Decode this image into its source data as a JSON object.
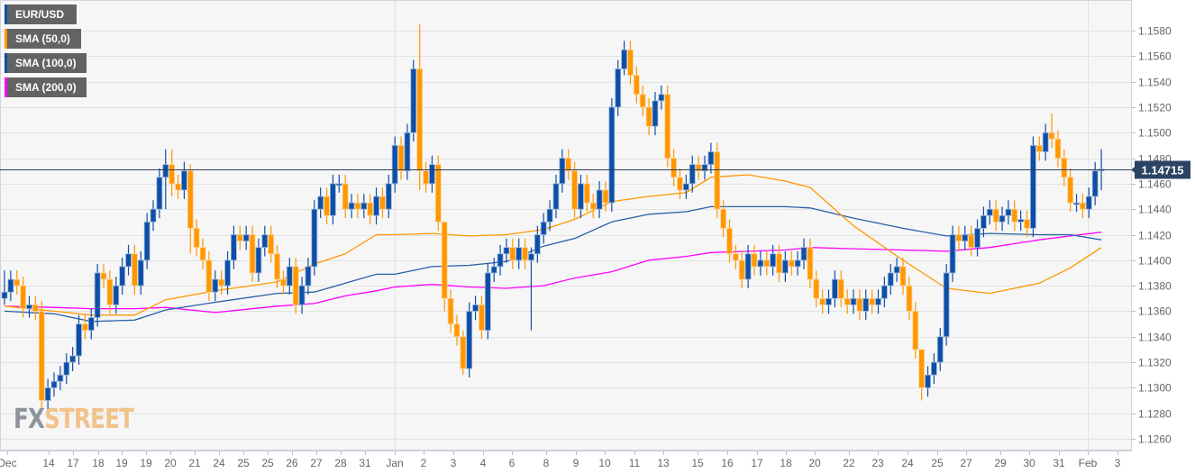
{
  "legend": [
    {
      "label": "EUR/USD",
      "color": "#0d4fa8"
    },
    {
      "label": "SMA (50,0)",
      "color": "#ff9800"
    },
    {
      "label": "SMA (100,0)",
      "color": "#0d4fa8"
    },
    {
      "label": "SMA (200,0)",
      "color": "#ff00ff"
    }
  ],
  "logo": {
    "part1": "FX",
    "part2": "STREET"
  },
  "chart_data": {
    "type": "candlestick",
    "symbol": "EUR/USD",
    "ylim": [
      1.125,
      1.159
    ],
    "y_ticks": [
      "1.1580",
      "1.1560",
      "1.1540",
      "1.1520",
      "1.1500",
      "1.1480",
      "1.1460",
      "1.1440",
      "1.1420",
      "1.1400",
      "1.1380",
      "1.1360",
      "1.1340",
      "1.1320",
      "1.1300",
      "1.1280",
      "1.1260"
    ],
    "x_tick_labels": [
      "Dec",
      "14",
      "17",
      "18",
      "19",
      "19",
      "20",
      "21",
      "24",
      "25",
      "25",
      "26",
      "27",
      "28",
      "31",
      "Jan",
      "2",
      "3",
      "4",
      "6",
      "8",
      "9",
      "10",
      "11",
      "13",
      "15",
      "16",
      "17",
      "18",
      "20",
      "22",
      "23",
      "24",
      "25",
      "27",
      "29",
      "30",
      "31",
      "Feb",
      "3"
    ],
    "current_price": {
      "value": 1.14715,
      "label": "1.14715"
    },
    "colors": {
      "bull": "#0d4fa8",
      "bear": "#ff9800",
      "sma50": "#ff9800",
      "sma100": "#2a5fa8",
      "sma200": "#ff00ff",
      "price_line": "#2c3e5a",
      "price_tag": "#2c4463"
    },
    "first_open": 1.137,
    "default_wick": 0.0007,
    "close": [
      1.1375,
      1.1385,
      1.138,
      1.1362,
      1.1365,
      1.136,
      1.129,
      1.13,
      1.1305,
      1.131,
      1.132,
      1.1325,
      1.135,
      1.1345,
      1.1355,
      1.139,
      1.1385,
      1.1365,
      1.138,
      1.1395,
      1.1405,
      1.138,
      1.14,
      1.143,
      1.144,
      1.1465,
      1.1475,
      1.146,
      1.1455,
      1.147,
      1.1425,
      1.141,
      1.14,
      1.1375,
      1.1385,
      1.138,
      1.14,
      1.142,
      1.1415,
      1.142,
      1.139,
      1.141,
      1.142,
      1.1405,
      1.1385,
      1.138,
      1.1395,
      1.1365,
      1.138,
      1.1395,
      1.144,
      1.145,
      1.1435,
      1.146,
      1.146,
      1.144,
      1.1445,
      1.144,
      1.1445,
      1.1435,
      1.145,
      1.144,
      1.146,
      1.149,
      1.147,
      1.15,
      1.155,
      1.147,
      1.146,
      1.1475,
      1.143,
      1.137,
      1.135,
      1.134,
      1.1315,
      1.136,
      1.1365,
      1.1345,
      1.139,
      1.1395,
      1.1405,
      1.141,
      1.14,
      1.141,
      1.14,
      1.1405,
      1.142,
      1.143,
      1.144,
      1.146,
      1.148,
      1.147,
      1.144,
      1.146,
      1.1445,
      1.144,
      1.1455,
      1.1445,
      1.152,
      1.155,
      1.1565,
      1.1545,
      1.153,
      1.152,
      1.1505,
      1.1525,
      1.153,
      1.148,
      1.1465,
      1.1455,
      1.146,
      1.1475,
      1.147,
      1.1475,
      1.1485,
      1.144,
      1.1425,
      1.1405,
      1.14,
      1.1385,
      1.1405,
      1.1395,
      1.14,
      1.1395,
      1.1405,
      1.139,
      1.14,
      1.1395,
      1.14,
      1.141,
      1.1385,
      1.137,
      1.1365,
      1.137,
      1.1385,
      1.137,
      1.1365,
      1.137,
      1.136,
      1.137,
      1.1365,
      1.137,
      1.138,
      1.139,
      1.1395,
      1.138,
      1.136,
      1.133,
      1.13,
      1.131,
      1.132,
      1.134,
      1.139,
      1.142,
      1.1415,
      1.142,
      1.141,
      1.1425,
      1.1435,
      1.144,
      1.143,
      1.1435,
      1.144,
      1.143,
      1.1432,
      1.1425,
      1.149,
      1.1485,
      1.15,
      1.1495,
      1.148,
      1.1465,
      1.1445,
      1.1445,
      1.144,
      1.145,
      1.147,
      1.14715
    ],
    "wick_overrides": {
      "0": [
        1.1392,
        1.1365
      ],
      "6": [
        1.1368,
        1.1283
      ],
      "26": [
        1.1487,
        1.144
      ],
      "27": [
        1.1487,
        1.145
      ],
      "30": [
        1.1475,
        1.1405
      ],
      "67": [
        1.1585,
        1.1455
      ],
      "71": [
        1.143,
        1.136
      ],
      "74": [
        1.1345,
        1.131
      ],
      "85": [
        1.141,
        1.1345
      ],
      "100": [
        1.1572,
        1.1545
      ],
      "148": [
        1.133,
        1.129
      ],
      "169": [
        1.1515,
        1.1488
      ],
      "177": [
        1.1487,
        1.1455
      ]
    },
    "sma_index": [
      0,
      8,
      14,
      21,
      26,
      34,
      44,
      50,
      55,
      60,
      63,
      69,
      75,
      81,
      87,
      92,
      98,
      104,
      110,
      114,
      120,
      126,
      130,
      137,
      145,
      152,
      159,
      167,
      172,
      177
    ],
    "series": [
      {
        "name": "SMA (50,0)",
        "values": [
          1.1364,
          1.136,
          1.1357,
          1.1357,
          1.1369,
          1.1376,
          1.1383,
          1.1397,
          1.1405,
          1.142,
          1.142,
          1.1421,
          1.1419,
          1.142,
          1.1424,
          1.1432,
          1.1446,
          1.145,
          1.1453,
          1.1465,
          1.1467,
          1.1462,
          1.1457,
          1.1427,
          1.14,
          1.1378,
          1.1374,
          1.1382,
          1.1394,
          1.141
        ]
      },
      {
        "name": "SMA (100,0)",
        "values": [
          1.136,
          1.1358,
          1.1352,
          1.1353,
          1.1361,
          1.1367,
          1.1374,
          1.1375,
          1.1382,
          1.1389,
          1.1389,
          1.1395,
          1.1396,
          1.1399,
          1.1411,
          1.1417,
          1.143,
          1.1436,
          1.1438,
          1.1442,
          1.1442,
          1.1442,
          1.1441,
          1.1433,
          1.1425,
          1.1419,
          1.1421,
          1.142,
          1.142,
          1.1416
        ]
      },
      {
        "name": "SMA (200,0)",
        "values": [
          1.1364,
          1.1363,
          1.1362,
          1.1362,
          1.1363,
          1.1359,
          1.1364,
          1.1366,
          1.1372,
          1.1376,
          1.1379,
          1.1381,
          1.1379,
          1.1378,
          1.138,
          1.1386,
          1.1391,
          1.14,
          1.1403,
          1.1406,
          1.1407,
          1.1408,
          1.141,
          1.1409,
          1.1408,
          1.1407,
          1.141,
          1.1416,
          1.1419,
          1.1422
        ]
      }
    ]
  }
}
